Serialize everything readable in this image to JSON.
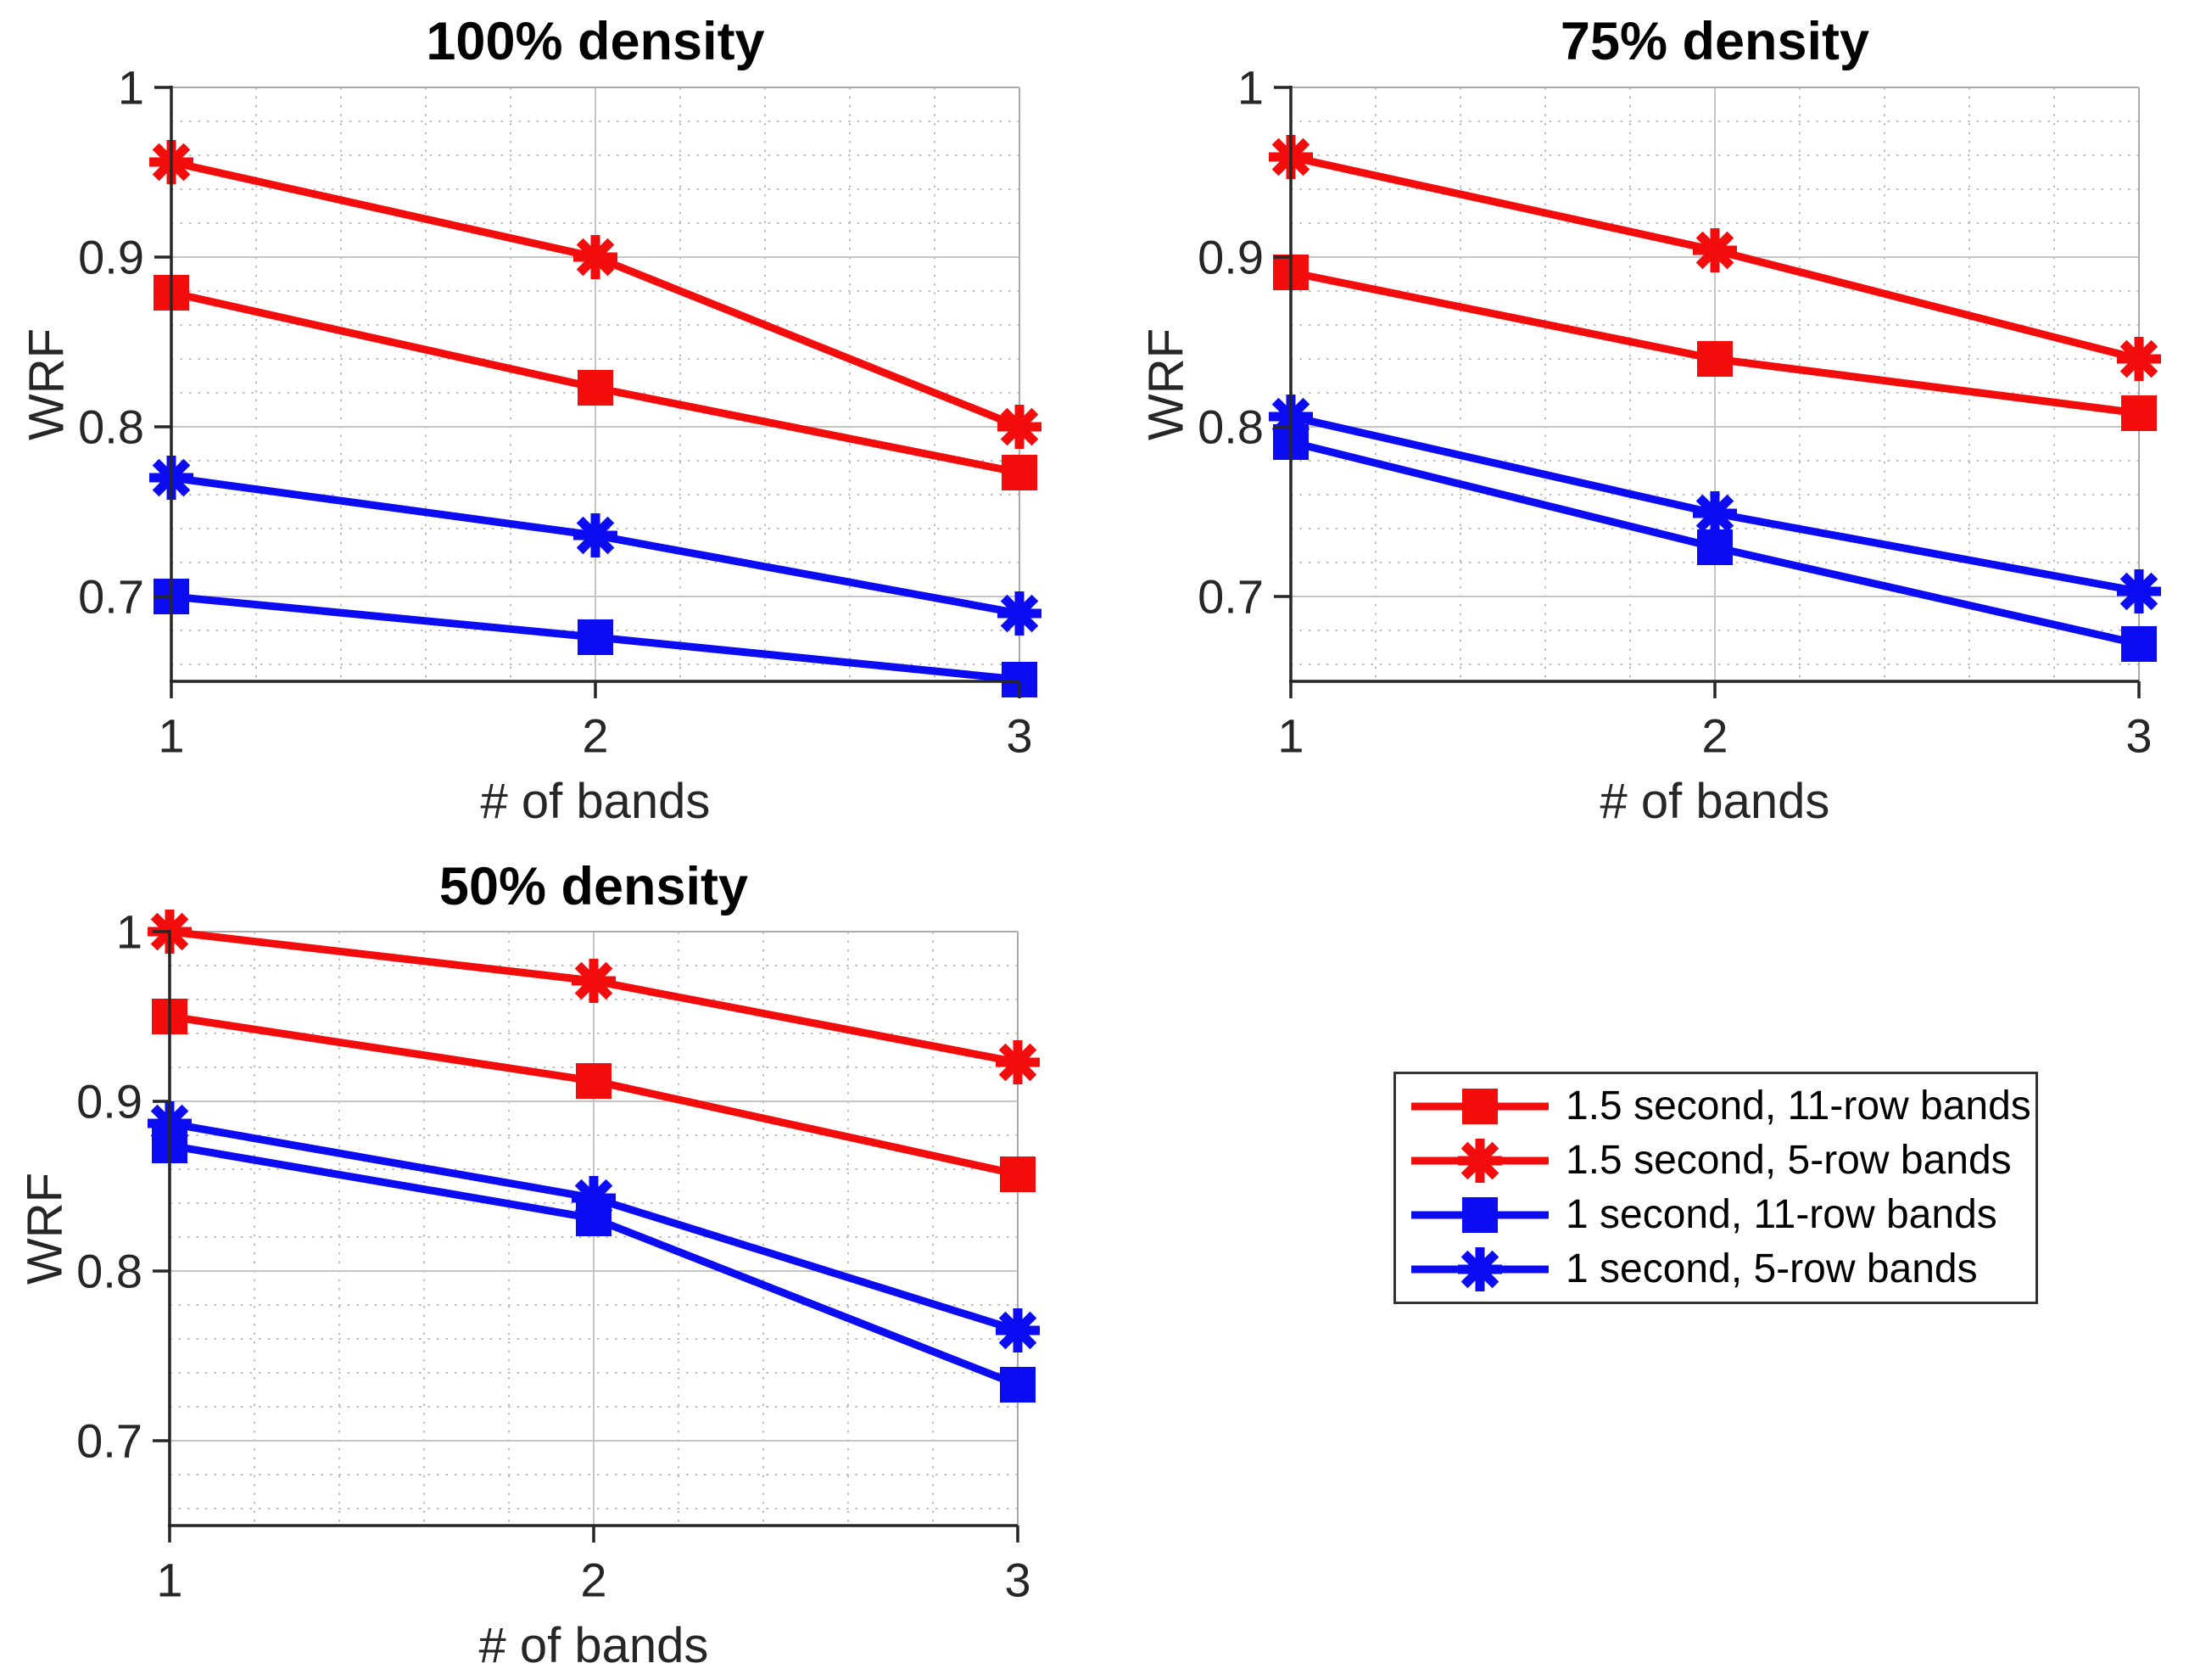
{
  "figure": {
    "background": "#ffffff",
    "red": "#f20c0c",
    "blue": "#0c0cf2",
    "axis_color": "#262626",
    "major_grid_color": "#c4c4c4",
    "minor_grid_color": "#bdbdbd",
    "box_edge_color": "#ababab"
  },
  "chart_data": [
    {
      "type": "line",
      "title": "100% density",
      "xlabel": "# of bands",
      "ylabel": "WRF",
      "x": [
        1,
        2,
        3
      ],
      "xlim": [
        1,
        3
      ],
      "ylim": [
        0.65,
        1.0
      ],
      "xticks": [
        1,
        2,
        3
      ],
      "xtick_labels": [
        "1",
        "2",
        "3"
      ],
      "yticks": [
        0.7,
        0.8,
        0.9,
        1.0
      ],
      "ytick_labels": [
        "0.7",
        "0.8",
        "0.9",
        "1"
      ],
      "minor_grid_x": 0.2,
      "minor_grid_y": 0.02,
      "grid": true,
      "series": [
        {
          "name": "1.5 second, 11-row bands",
          "color": "#f20c0c",
          "marker": "square",
          "values": [
            0.879,
            0.823,
            0.773
          ]
        },
        {
          "name": "1.5 second, 5-row bands",
          "color": "#f20c0c",
          "marker": "asterisk",
          "values": [
            0.956,
            0.9,
            0.8
          ]
        },
        {
          "name": "1 second, 11-row bands",
          "color": "#0c0cf2",
          "marker": "square",
          "values": [
            0.7,
            0.676,
            0.651
          ]
        },
        {
          "name": "1 second, 5-row bands",
          "color": "#0c0cf2",
          "marker": "asterisk",
          "values": [
            0.77,
            0.736,
            0.69
          ]
        }
      ]
    },
    {
      "type": "line",
      "title": "75% density",
      "xlabel": "# of bands",
      "ylabel": "WRF",
      "x": [
        1,
        2,
        3
      ],
      "xlim": [
        1,
        3
      ],
      "ylim": [
        0.65,
        1.0
      ],
      "xticks": [
        1,
        2,
        3
      ],
      "xtick_labels": [
        "1",
        "2",
        "3"
      ],
      "yticks": [
        0.7,
        0.8,
        0.9,
        1.0
      ],
      "ytick_labels": [
        "0.7",
        "0.8",
        "0.9",
        "1"
      ],
      "minor_grid_x": 0.2,
      "minor_grid_y": 0.02,
      "grid": true,
      "series": [
        {
          "name": "1.5 second, 11-row bands",
          "color": "#f20c0c",
          "marker": "square",
          "values": [
            0.891,
            0.84,
            0.808
          ]
        },
        {
          "name": "1.5 second, 5-row bands",
          "color": "#f20c0c",
          "marker": "asterisk",
          "values": [
            0.959,
            0.904,
            0.84
          ]
        },
        {
          "name": "1 second, 11-row bands",
          "color": "#0c0cf2",
          "marker": "square",
          "values": [
            0.791,
            0.729,
            0.672
          ]
        },
        {
          "name": "1 second, 5-row bands",
          "color": "#0c0cf2",
          "marker": "asterisk",
          "values": [
            0.806,
            0.749,
            0.703
          ]
        }
      ]
    },
    {
      "type": "line",
      "title": "50% density",
      "xlabel": "# of bands",
      "ylabel": "WRF",
      "x": [
        1,
        2,
        3
      ],
      "xlim": [
        1,
        3
      ],
      "ylim": [
        0.65,
        1.0
      ],
      "xticks": [
        1,
        2,
        3
      ],
      "xtick_labels": [
        "1",
        "2",
        "3"
      ],
      "yticks": [
        0.7,
        0.8,
        0.9,
        1.0
      ],
      "ytick_labels": [
        "0.7",
        "0.8",
        "0.9",
        "1"
      ],
      "minor_grid_x": 0.2,
      "minor_grid_y": 0.02,
      "grid": true,
      "series": [
        {
          "name": "1.5 second, 11-row bands",
          "color": "#f20c0c",
          "marker": "square",
          "values": [
            0.95,
            0.912,
            0.857
          ]
        },
        {
          "name": "1.5 second, 5-row bands",
          "color": "#f20c0c",
          "marker": "asterisk",
          "values": [
            1.0,
            0.971,
            0.923
          ]
        },
        {
          "name": "1 second, 11-row bands",
          "color": "#0c0cf2",
          "marker": "square",
          "values": [
            0.874,
            0.831,
            0.733
          ]
        },
        {
          "name": "1 second, 5-row bands",
          "color": "#0c0cf2",
          "marker": "asterisk",
          "values": [
            0.887,
            0.843,
            0.765
          ]
        }
      ]
    }
  ],
  "legend": {
    "position": "bottom-right-quadrant",
    "entries": [
      {
        "label": "1.5 second, 11-row bands",
        "color": "#f20c0c",
        "marker": "square"
      },
      {
        "label": "1.5 second, 5-row bands",
        "color": "#f20c0c",
        "marker": "asterisk"
      },
      {
        "label": "1 second, 11-row bands",
        "color": "#0c0cf2",
        "marker": "square"
      },
      {
        "label": "1 second, 5-row bands",
        "color": "#0c0cf2",
        "marker": "asterisk"
      }
    ]
  }
}
